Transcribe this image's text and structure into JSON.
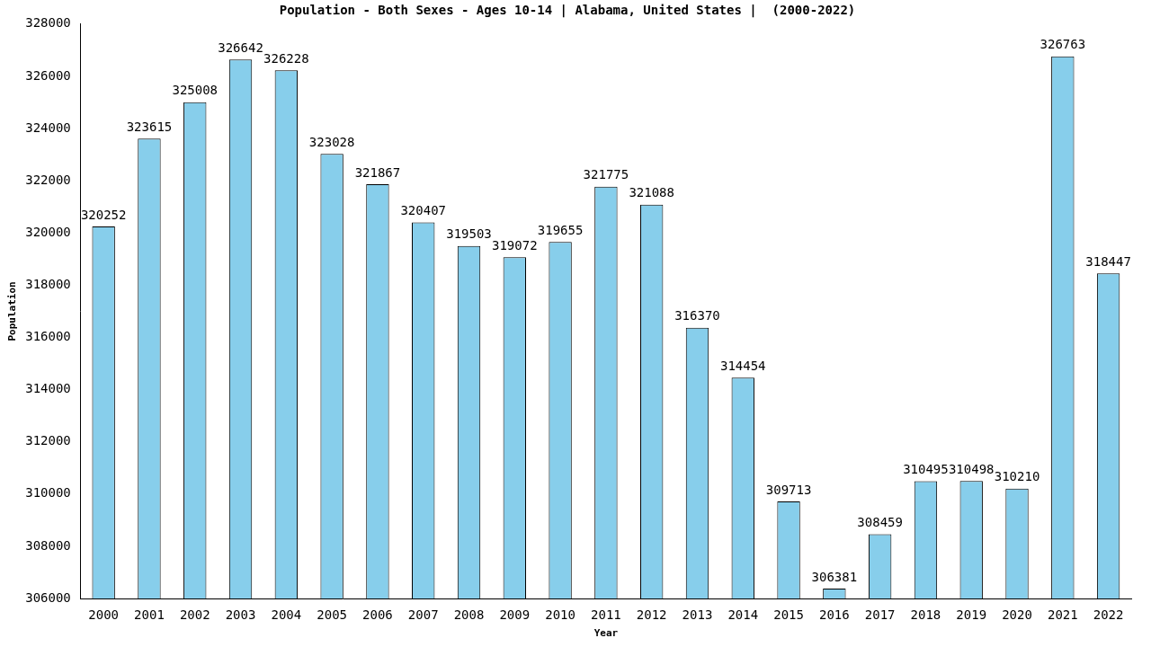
{
  "chart_data": {
    "type": "bar",
    "title": "Population - Both Sexes - Ages 10-14 | Alabama, United States |  (2000-2022)",
    "x_label": "Year",
    "y_label": "Population",
    "categories": [
      "2000",
      "2001",
      "2002",
      "2003",
      "2004",
      "2005",
      "2006",
      "2007",
      "2008",
      "2009",
      "2010",
      "2011",
      "2012",
      "2013",
      "2014",
      "2015",
      "2016",
      "2017",
      "2018",
      "2019",
      "2020",
      "2021",
      "2022"
    ],
    "values": [
      320252,
      323615,
      325008,
      326642,
      326228,
      323028,
      321867,
      320407,
      319503,
      319072,
      319655,
      321775,
      321088,
      316370,
      314454,
      309713,
      306381,
      308459,
      310495,
      310498,
      310210,
      326763,
      318447
    ],
    "color": "#87ceeb",
    "ylim": [
      306000,
      328000
    ],
    "yticks": [
      306000,
      308000,
      310000,
      312000,
      314000,
      316000,
      318000,
      320000,
      322000,
      324000,
      326000,
      328000
    ],
    "grid": false,
    "data_labels": true
  }
}
